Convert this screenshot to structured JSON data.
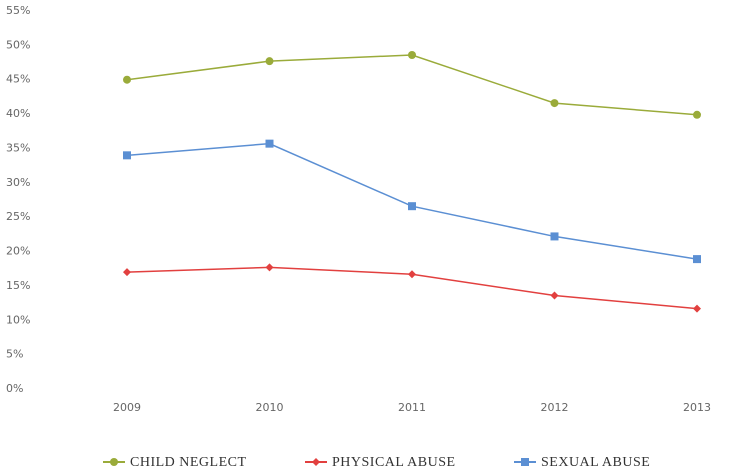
{
  "chart_data": {
    "type": "line",
    "categories": [
      "2009",
      "2010",
      "2011",
      "2012",
      "2013"
    ],
    "series": [
      {
        "name": "CHILD NEGLECT",
        "color": "#9aab3a",
        "marker": "circle",
        "values": [
          45,
          47.7,
          48.6,
          41.6,
          39.9
        ]
      },
      {
        "name": "PHYSICAL ABUSE",
        "color": "#e2403f",
        "marker": "diamond",
        "values": [
          17,
          17.7,
          16.7,
          13.6,
          11.7
        ]
      },
      {
        "name": "SEXUAL ABUSE",
        "color": "#5b8fd3",
        "marker": "square",
        "values": [
          34,
          35.7,
          26.6,
          22.2,
          18.9
        ]
      }
    ],
    "ylim": [
      0,
      55
    ],
    "yticks": [
      {
        "value": 0,
        "label": "0%"
      },
      {
        "value": 5,
        "label": "5%"
      },
      {
        "value": 10,
        "label": "10%"
      },
      {
        "value": 15,
        "label": "15%"
      },
      {
        "value": 20,
        "label": "20%"
      },
      {
        "value": 25,
        "label": "25%"
      },
      {
        "value": 30,
        "label": "30%"
      },
      {
        "value": 35,
        "label": "35%"
      },
      {
        "value": 40,
        "label": "40%"
      },
      {
        "value": 45,
        "label": "45%"
      },
      {
        "value": 50,
        "label": "50%"
      },
      {
        "value": 55,
        "label": "55%"
      }
    ],
    "grid": false,
    "legend": "bottom"
  }
}
